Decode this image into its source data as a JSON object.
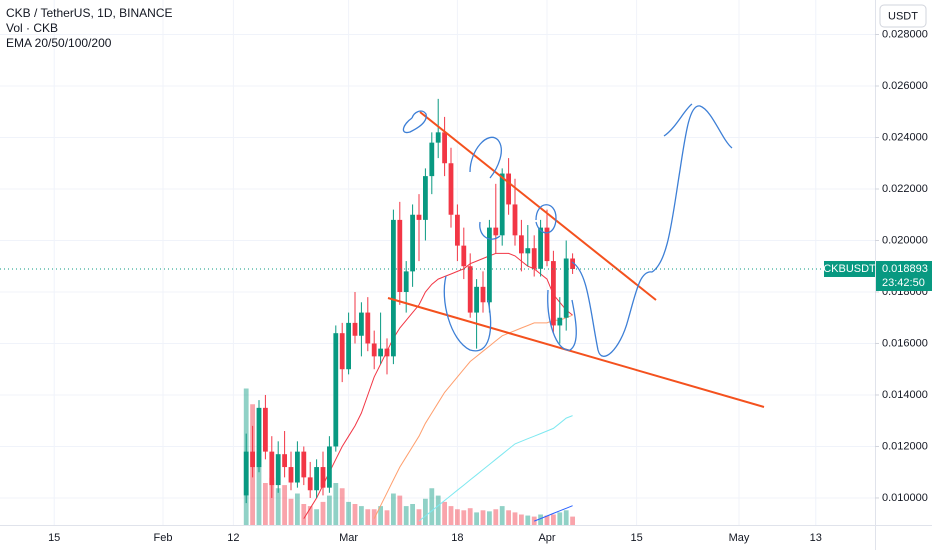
{
  "chart_data": {
    "type": "candlestick",
    "title": "CKB / TetherUS, 1D, BINANCE",
    "volume_label": "Vol · CKB",
    "indicator_label": "EMA 20/50/100/200",
    "currency": "USDT",
    "symbol": "CKBUSDT",
    "countdown": "23:42:50",
    "up_color": "#089981",
    "down_color": "#f23645",
    "grid": true,
    "ylim": [
      0.00895,
      0.02934
    ],
    "yticks": [
      {
        "value": 0.01,
        "label": "0.010000"
      },
      {
        "value": 0.012,
        "label": "0.012000"
      },
      {
        "value": 0.014,
        "label": "0.014000"
      },
      {
        "value": 0.016,
        "label": "0.016000"
      },
      {
        "value": 0.018,
        "label": "0.018000"
      },
      {
        "value": 0.02,
        "label": "0.020000"
      },
      {
        "value": 0.022,
        "label": "0.022000"
      },
      {
        "value": 0.024,
        "label": "0.024000"
      },
      {
        "value": 0.026,
        "label": "0.026000"
      },
      {
        "value": 0.028,
        "label": "0.028000"
      }
    ],
    "xticks": [
      {
        "value": "01-15",
        "label": "15"
      },
      {
        "value": "02-01",
        "label": "Feb"
      },
      {
        "value": "02-12",
        "label": "12"
      },
      {
        "value": "03-01",
        "label": "Mar"
      },
      {
        "value": "03-18",
        "label": "18"
      },
      {
        "value": "04-01",
        "label": "Apr"
      },
      {
        "value": "04-15",
        "label": "15"
      },
      {
        "value": "05-01",
        "label": "May"
      },
      {
        "value": "05-13",
        "label": "13"
      }
    ],
    "x": [
      "02-14",
      "02-15",
      "02-16",
      "02-17",
      "02-18",
      "02-19",
      "02-20",
      "02-21",
      "02-22",
      "02-23",
      "02-24",
      "02-25",
      "02-26",
      "02-27",
      "02-28",
      "02-29",
      "03-01",
      "03-02",
      "03-03",
      "03-04",
      "03-05",
      "03-06",
      "03-07",
      "03-08",
      "03-09",
      "03-10",
      "03-11",
      "03-12",
      "03-13",
      "03-14",
      "03-15",
      "03-16",
      "03-17",
      "03-18",
      "03-19",
      "03-20",
      "03-21",
      "03-22",
      "03-23",
      "03-24",
      "03-25",
      "03-26",
      "03-27",
      "03-28",
      "03-29",
      "03-30",
      "03-31",
      "04-01",
      "04-02",
      "04-03",
      "04-04",
      "04-05"
    ],
    "open": [
      0.0101,
      0.0118,
      0.0112,
      0.0135,
      0.0118,
      0.0105,
      0.0117,
      0.0112,
      0.0106,
      0.0118,
      0.0108,
      0.0103,
      0.0112,
      0.0104,
      0.012,
      0.0164,
      0.015,
      0.0168,
      0.0163,
      0.0172,
      0.016,
      0.0155,
      0.0158,
      0.0155,
      0.0208,
      0.018,
      0.0188,
      0.021,
      0.0208,
      0.0225,
      0.0238,
      0.0242,
      0.023,
      0.021,
      0.0198,
      0.019,
      0.0172,
      0.0182,
      0.0176,
      0.0205,
      0.0202,
      0.0226,
      0.0214,
      0.0202,
      0.0195,
      0.0197,
      0.0189,
      0.0205,
      0.0192,
      0.0167,
      0.017,
      0.0193
    ],
    "high": [
      0.0125,
      0.0128,
      0.0138,
      0.014,
      0.0124,
      0.0122,
      0.0126,
      0.0118,
      0.0122,
      0.012,
      0.0114,
      0.0115,
      0.0118,
      0.0124,
      0.0167,
      0.0168,
      0.0172,
      0.018,
      0.0176,
      0.0178,
      0.0165,
      0.0172,
      0.0162,
      0.0212,
      0.0215,
      0.0192,
      0.0214,
      0.0218,
      0.0228,
      0.0242,
      0.0255,
      0.0248,
      0.0236,
      0.0214,
      0.0205,
      0.0195,
      0.0185,
      0.0188,
      0.0208,
      0.0222,
      0.0228,
      0.0232,
      0.0224,
      0.0208,
      0.0206,
      0.0202,
      0.0208,
      0.0212,
      0.0196,
      0.0178,
      0.02,
      0.0195
    ],
    "low": [
      0.0098,
      0.0108,
      0.011,
      0.0115,
      0.01,
      0.0102,
      0.0108,
      0.0103,
      0.0104,
      0.0105,
      0.01,
      0.01,
      0.0101,
      0.0102,
      0.0118,
      0.0145,
      0.0148,
      0.016,
      0.0155,
      0.0157,
      0.015,
      0.0152,
      0.0148,
      0.0152,
      0.0175,
      0.0172,
      0.0182,
      0.0192,
      0.02,
      0.0218,
      0.0232,
      0.0225,
      0.0205,
      0.0192,
      0.0185,
      0.017,
      0.0158,
      0.0172,
      0.0172,
      0.0195,
      0.0198,
      0.021,
      0.0198,
      0.0188,
      0.019,
      0.0186,
      0.0186,
      0.019,
      0.0164,
      0.016,
      0.0165,
      0.0187
    ],
    "close": [
      0.0118,
      0.0112,
      0.0135,
      0.0118,
      0.0105,
      0.0117,
      0.0112,
      0.0106,
      0.0118,
      0.0108,
      0.0103,
      0.0112,
      0.0104,
      0.012,
      0.0164,
      0.015,
      0.0168,
      0.0163,
      0.0172,
      0.016,
      0.0155,
      0.0158,
      0.0155,
      0.0208,
      0.018,
      0.0188,
      0.021,
      0.0208,
      0.0225,
      0.0238,
      0.0242,
      0.023,
      0.021,
      0.0198,
      0.019,
      0.0172,
      0.0182,
      0.0176,
      0.0205,
      0.0202,
      0.0226,
      0.0214,
      0.0202,
      0.0195,
      0.0197,
      0.0189,
      0.0205,
      0.0192,
      0.0167,
      0.017,
      0.0193,
      0.018893
    ],
    "vol_ylim": [
      0,
      500
    ],
    "volume": [
      130,
      115,
      70,
      40,
      45,
      35,
      38,
      25,
      30,
      20,
      18,
      15,
      22,
      28,
      40,
      35,
      22,
      20,
      18,
      15,
      15,
      18,
      14,
      30,
      28,
      18,
      20,
      15,
      25,
      35,
      28,
      22,
      18,
      15,
      14,
      16,
      12,
      14,
      13,
      15,
      18,
      14,
      12,
      10,
      9,
      8,
      10,
      9,
      10,
      12,
      14,
      8
    ],
    "emas": [
      {
        "color": "#f23645",
        "values": [
          null,
          null,
          null,
          null,
          null,
          null,
          null,
          null,
          null,
          0.0092,
          0.0096,
          0.01,
          0.0105,
          0.011,
          0.0115,
          0.012,
          0.0124,
          0.0128,
          0.0133,
          0.014,
          0.0147,
          0.0152,
          0.0157,
          0.0162,
          0.0166,
          0.0169,
          0.0172,
          0.0175,
          0.018,
          0.0183,
          0.0185,
          0.0186,
          0.0187,
          0.0188,
          0.0189,
          0.0191,
          0.0192,
          0.0193,
          0.0194,
          0.0195,
          0.0195,
          0.0195,
          0.0194,
          0.0192,
          0.019,
          0.0189,
          0.0187,
          0.0185,
          0.0179,
          0.0176,
          0.0173,
          0.0171
        ]
      },
      {
        "color": "#ff9f6e",
        "values": [
          null,
          null,
          null,
          null,
          null,
          null,
          null,
          null,
          null,
          null,
          null,
          null,
          null,
          null,
          null,
          null,
          null,
          null,
          null,
          null,
          0.0092,
          0.0097,
          0.0102,
          0.0107,
          0.0112,
          0.0116,
          0.012,
          0.0124,
          0.0129,
          0.0133,
          0.0137,
          0.0141,
          0.0144,
          0.0147,
          0.015,
          0.0153,
          0.0155,
          0.0157,
          0.0159,
          0.0161,
          0.0163,
          0.0164,
          0.0165,
          0.0166,
          0.0167,
          0.0168,
          0.0168,
          0.0168,
          0.0169,
          0.0169,
          0.017,
          0.0171
        ]
      },
      {
        "color": "#7ee8f0",
        "values": [
          null,
          null,
          null,
          null,
          null,
          null,
          null,
          null,
          null,
          null,
          null,
          null,
          null,
          null,
          null,
          null,
          null,
          null,
          null,
          null,
          null,
          null,
          null,
          null,
          null,
          null,
          null,
          0.0091,
          0.0093,
          0.0095,
          0.0097,
          0.0099,
          0.0101,
          0.0103,
          0.0105,
          0.0107,
          0.0109,
          0.0111,
          0.0113,
          0.0115,
          0.0117,
          0.0119,
          0.0121,
          0.0122,
          0.0123,
          0.0124,
          0.0125,
          0.0126,
          0.0127,
          0.0129,
          0.0131,
          0.0132
        ]
      },
      {
        "color": "#2962ff",
        "values": [
          null,
          null,
          null,
          null,
          null,
          null,
          null,
          null,
          null,
          null,
          null,
          null,
          null,
          null,
          null,
          null,
          null,
          null,
          null,
          null,
          null,
          null,
          null,
          null,
          null,
          null,
          null,
          null,
          null,
          null,
          null,
          null,
          null,
          null,
          null,
          null,
          null,
          null,
          null,
          null,
          null,
          null,
          null,
          null,
          null,
          0.0091,
          0.0092,
          0.0093,
          0.0094,
          0.0095,
          0.0096,
          0.0097
        ]
      }
    ]
  }
}
